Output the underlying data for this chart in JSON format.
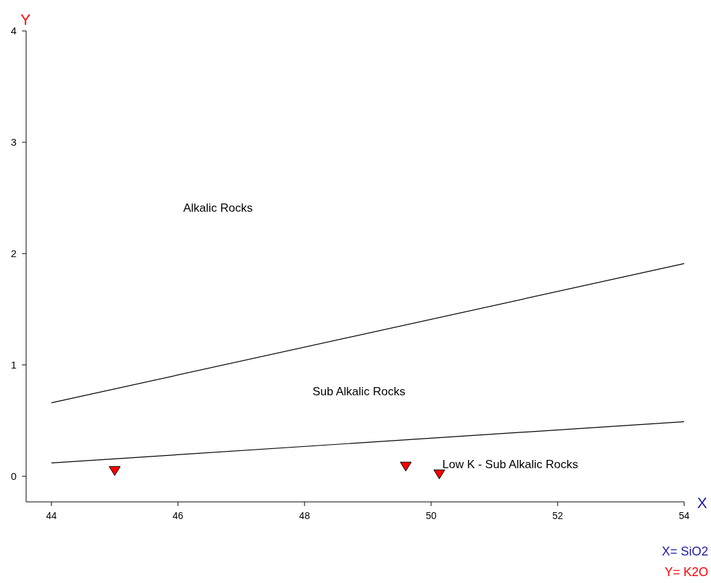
{
  "chart_data": {
    "type": "scatter",
    "xlabel": "X",
    "ylabel": "Y",
    "xlim": [
      43.6,
      54
    ],
    "xticks": [
      44,
      46,
      48,
      50,
      52,
      54
    ],
    "ylim": [
      -0.23,
      4
    ],
    "yticks": [
      0,
      1,
      2,
      3,
      4
    ],
    "grid": false,
    "series": [
      {
        "type": "line",
        "color": "#000000",
        "x": [
          44,
          54
        ],
        "values": [
          0.66,
          1.91
        ]
      },
      {
        "type": "line",
        "color": "#000000",
        "x": [
          44,
          54
        ],
        "values": [
          0.12,
          0.49
        ]
      },
      {
        "color": "#ff0000",
        "marker": "triangle",
        "x": [
          45.0,
          49.6,
          50.13
        ],
        "values": [
          0.05,
          0.09,
          0.02
        ]
      }
    ],
    "annotations": [
      "Alkalic Rocks",
      "Sub Alkalic Rocks",
      "Low K - Sub Alkalic Rocks",
      "X= SiO2",
      "Y= K2O"
    ]
  }
}
